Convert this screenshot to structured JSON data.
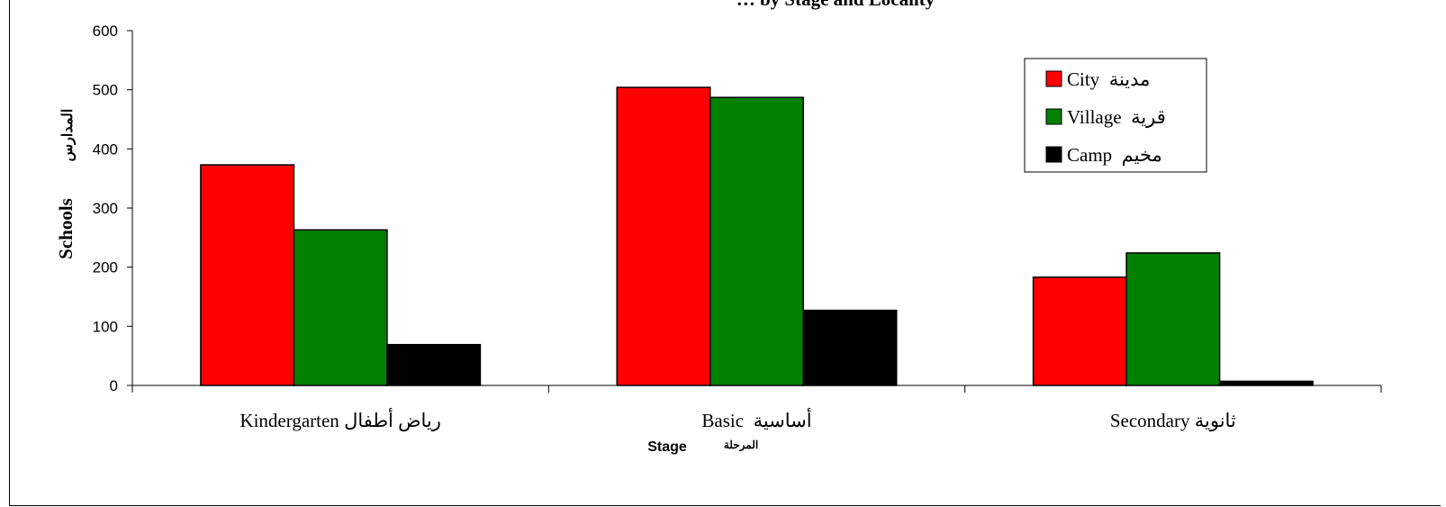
{
  "chart_data": {
    "type": "bar",
    "title": "… by Stage and Locality",
    "categories": [
      "Kindergarten رياض أطفال",
      "Basic  أساسية",
      "Secondary ثانوية"
    ],
    "series": [
      {
        "name": "City  مدينة",
        "color": "#ff0000",
        "values": [
          373,
          504,
          183
        ]
      },
      {
        "name": "Village  قرية",
        "color": "#008000",
        "values": [
          263,
          487,
          224
        ]
      },
      {
        "name": "Camp  مخيم",
        "color": "#000000",
        "values": [
          69,
          127,
          7
        ]
      }
    ],
    "xlabel": {
      "en": "Stage",
      "ar": "المرحلة"
    },
    "ylabel": {
      "en": "Schools",
      "ar": "المدارس"
    },
    "ylim": [
      0,
      600
    ],
    "yticks": [
      "0",
      "100",
      "200",
      "300",
      "400",
      "500",
      "600"
    ],
    "grid": false,
    "legend_position": "top-right"
  }
}
